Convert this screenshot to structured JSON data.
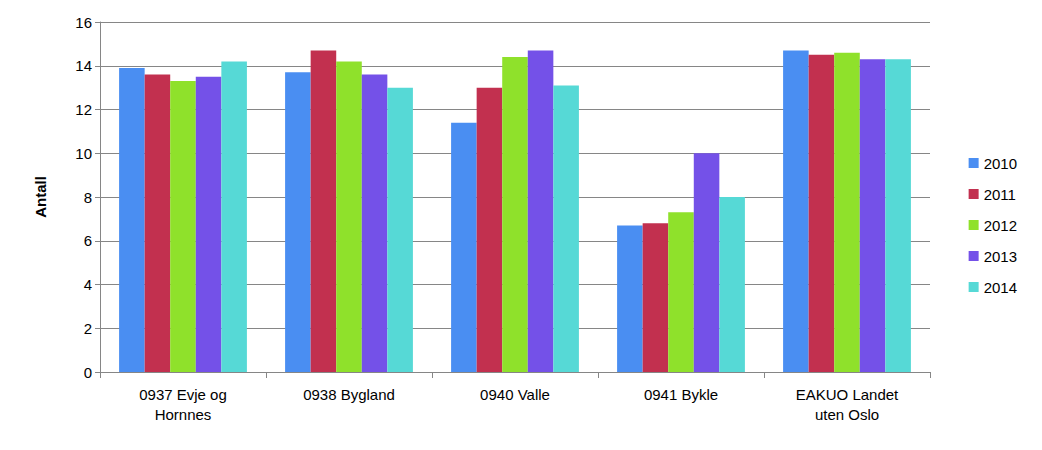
{
  "chart_data": {
    "type": "bar",
    "y_label": "Antall",
    "categories": [
      "0937 Evje og\nHornnes",
      "0938 Bygland",
      "0940 Valle",
      "0941 Bykle",
      "EAKUO Landet\nuten Oslo"
    ],
    "series": [
      {
        "name": "2010",
        "color": "#4a8ef2",
        "values": [
          13.9,
          13.7,
          11.4,
          6.7,
          14.7
        ]
      },
      {
        "name": "2011",
        "color": "#c2304f",
        "values": [
          13.6,
          14.7,
          13.0,
          6.8,
          14.5
        ]
      },
      {
        "name": "2012",
        "color": "#8fe12b",
        "values": [
          13.3,
          14.2,
          14.4,
          7.3,
          14.6
        ]
      },
      {
        "name": "2013",
        "color": "#7451e8",
        "values": [
          13.5,
          13.6,
          14.7,
          10.0,
          14.3
        ]
      },
      {
        "name": "2014",
        "color": "#56d9d6",
        "values": [
          14.2,
          13.0,
          13.1,
          8.0,
          14.3
        ]
      }
    ],
    "ylim": [
      0,
      16
    ],
    "yticks": [
      0,
      2,
      4,
      6,
      8,
      10,
      12,
      14,
      16
    ],
    "grid": true,
    "legend": "right"
  }
}
